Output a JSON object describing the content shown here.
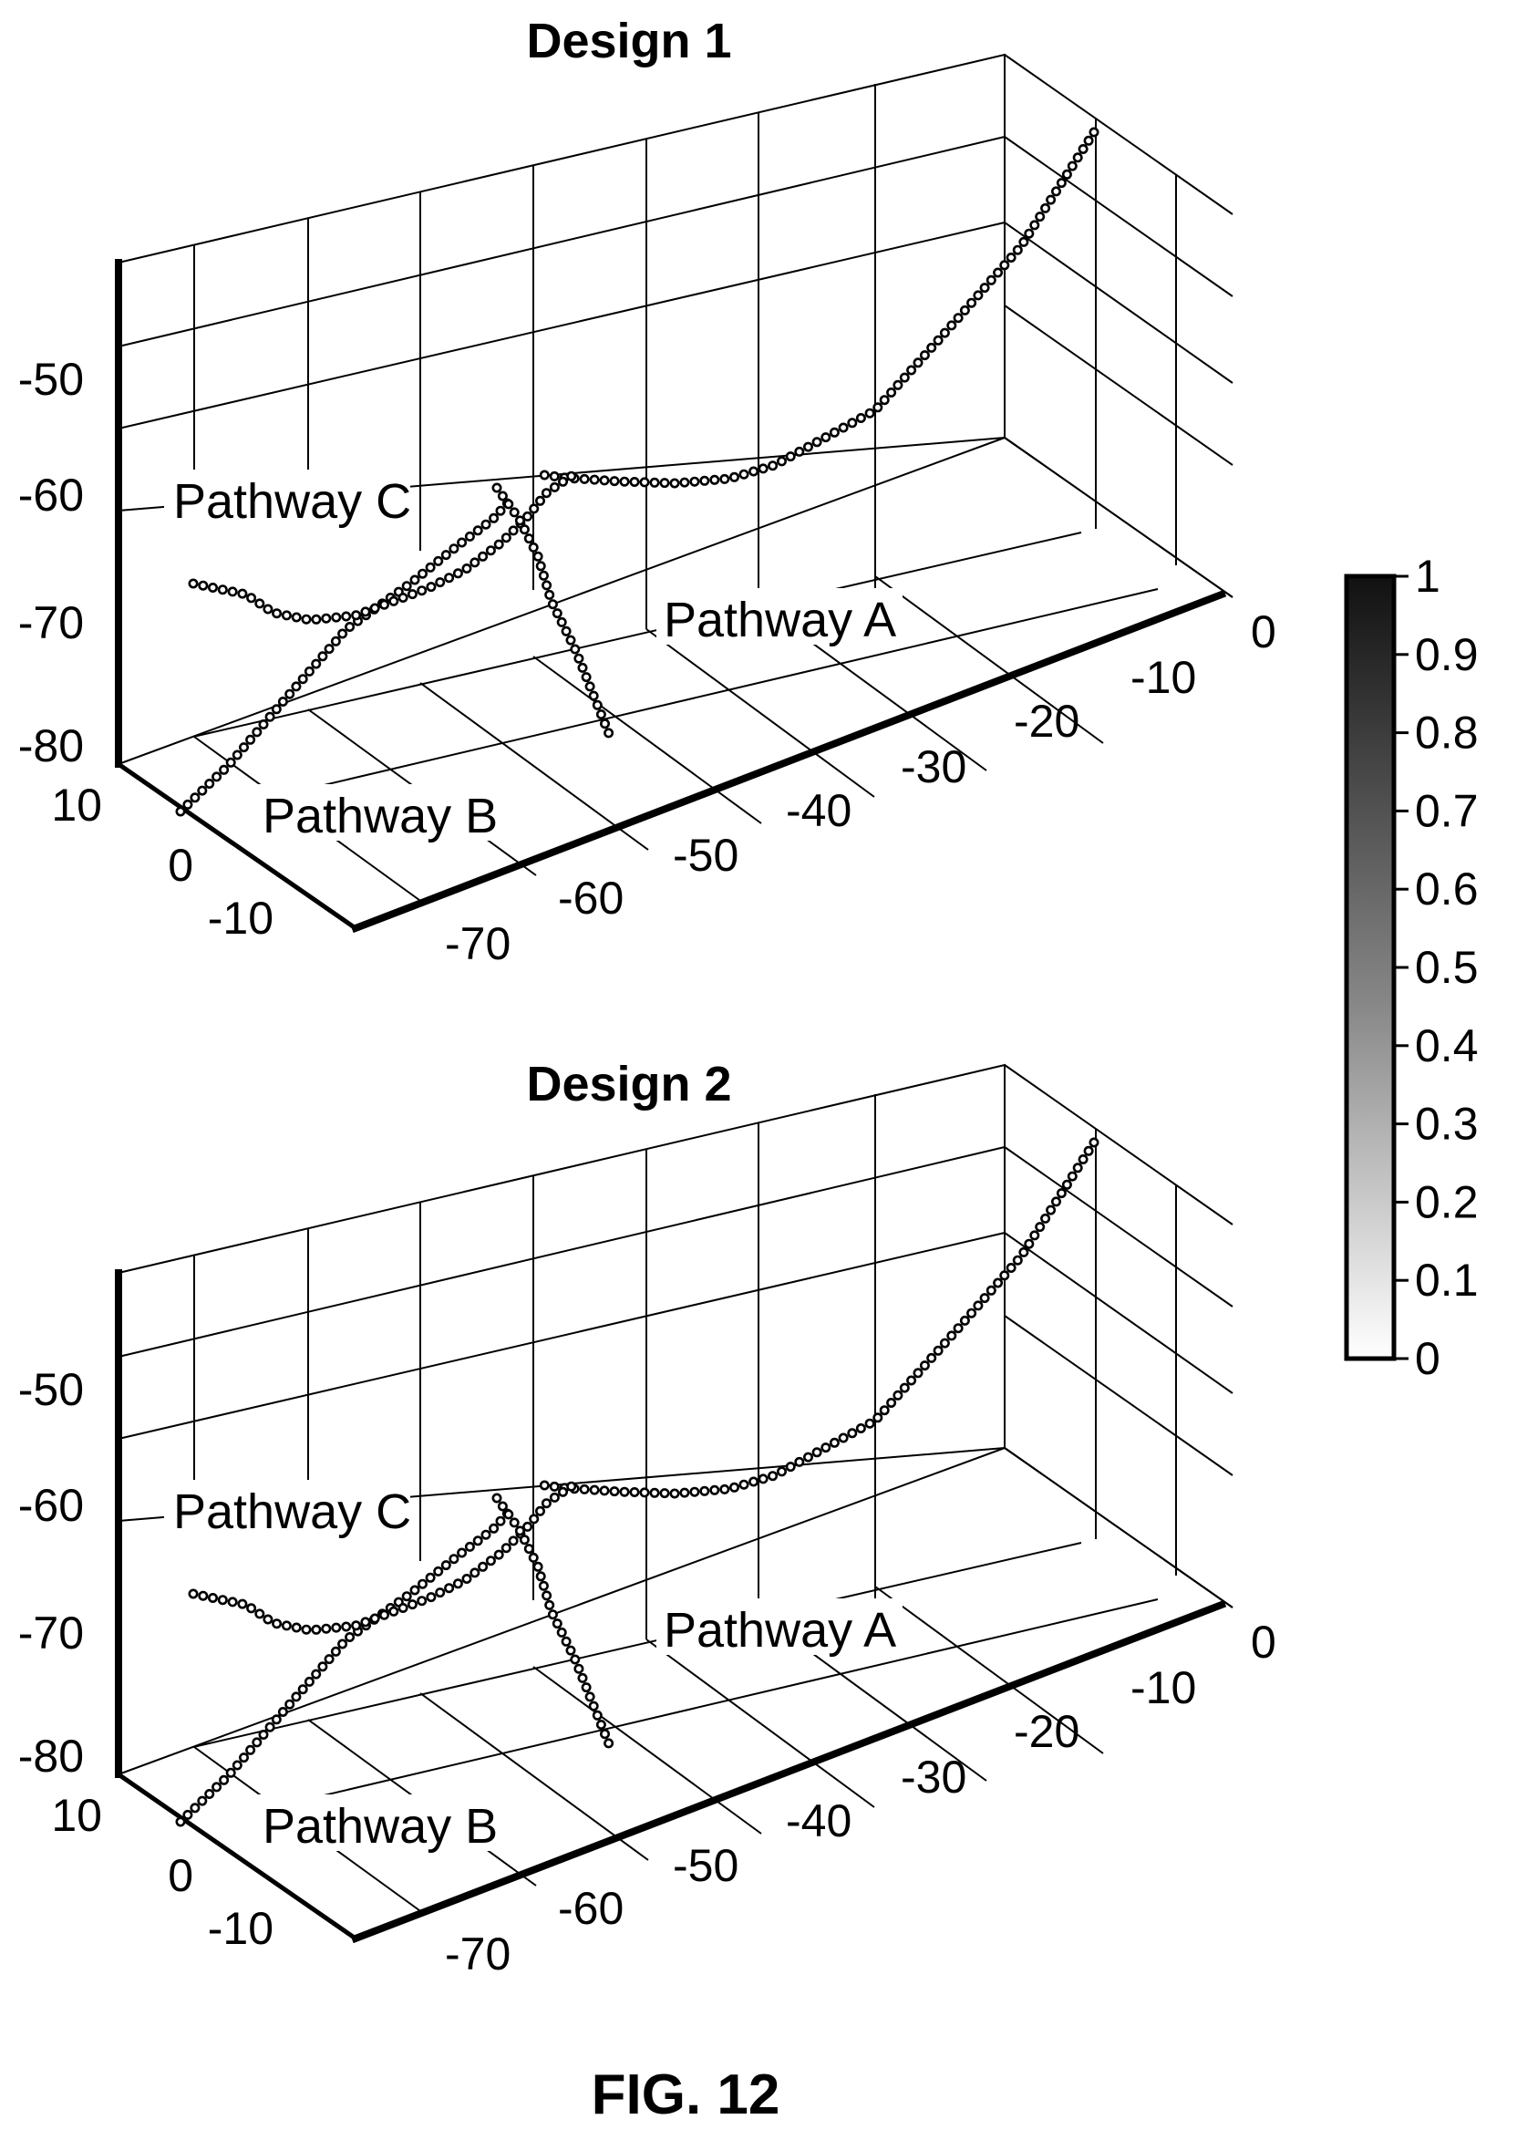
{
  "figure_label": "FIG. 12",
  "colorbar": {
    "ticks": [
      "1",
      "0.9",
      "0.8",
      "0.7",
      "0.6",
      "0.5",
      "0.4",
      "0.3",
      "0.2",
      "0.1",
      "0"
    ],
    "range": [
      0,
      1
    ]
  },
  "chart_data": [
    {
      "type": "scatter",
      "title": "Design 1",
      "axes": {
        "x_ticks": [
          "0",
          "-10",
          "-20",
          "-30",
          "-40",
          "-50",
          "-60",
          "-70"
        ],
        "y_ticks": [
          "10",
          "0",
          "-10"
        ],
        "z_ticks": [
          "-50",
          "-60",
          "-70",
          "-80"
        ],
        "xlim": [
          -80,
          0
        ],
        "ylim": [
          -15,
          15
        ],
        "zlim": [
          -80,
          -50
        ],
        "grid": true
      },
      "series": [
        {
          "name": "Pathway A"
        },
        {
          "name": "Pathway B"
        },
        {
          "name": "Pathway C"
        }
      ]
    },
    {
      "type": "scatter",
      "title": "Design 2",
      "axes": {
        "x_ticks": [
          "0",
          "-10",
          "-20",
          "-30",
          "-40",
          "-50",
          "-60",
          "-70"
        ],
        "y_ticks": [
          "10",
          "0",
          "-10"
        ],
        "z_ticks": [
          "-50",
          "-60",
          "-70",
          "-80"
        ],
        "xlim": [
          -80,
          0
        ],
        "ylim": [
          -15,
          15
        ],
        "zlim": [
          -80,
          -50
        ],
        "grid": true
      },
      "series": [
        {
          "name": "Pathway A"
        },
        {
          "name": "Pathway B"
        },
        {
          "name": "Pathway C"
        }
      ]
    }
  ]
}
